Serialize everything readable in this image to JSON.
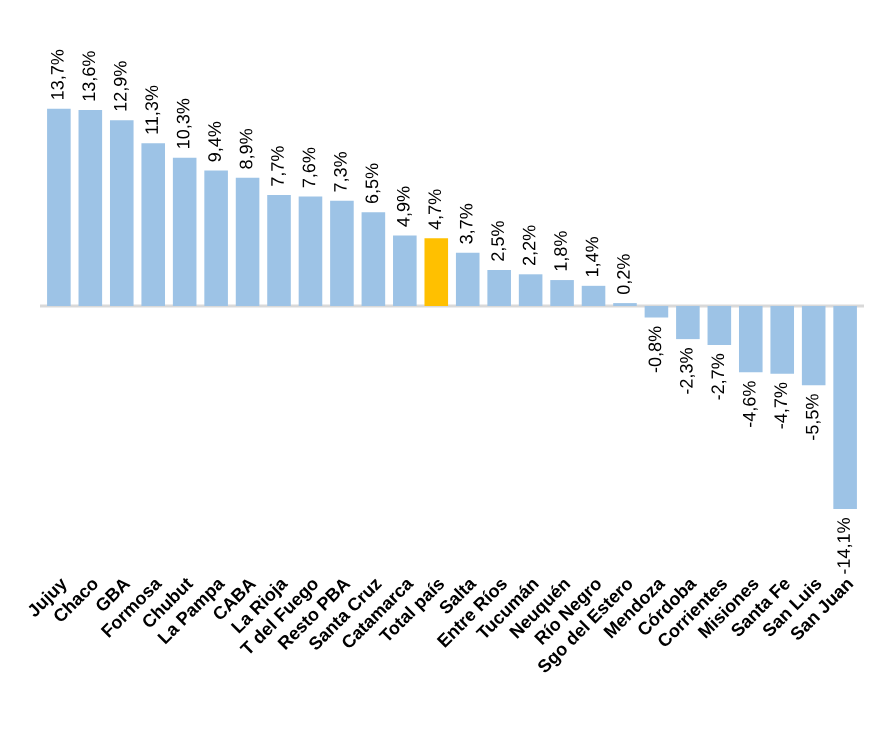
{
  "chart_data": {
    "type": "bar",
    "categories": [
      "Jujuy",
      "Chaco",
      "GBA",
      "Formosa",
      "Chubut",
      "La Pampa",
      "CABA",
      "La Rioja",
      "T del Fuego",
      "Resto PBA",
      "Santa Cruz",
      "Catamarca",
      "Total país",
      "Salta",
      "Entre Ríos",
      "Tucumán",
      "Neuquén",
      "Río Negro",
      "Sgo del Estero",
      "Mendoza",
      "Córdoba",
      "Corrientes",
      "Misiones",
      "Santa Fe",
      "San Luis",
      "San Juan"
    ],
    "values": [
      13.7,
      13.6,
      12.9,
      11.3,
      10.3,
      9.4,
      8.9,
      7.7,
      7.6,
      7.3,
      6.5,
      4.9,
      4.7,
      3.7,
      2.5,
      2.2,
      1.8,
      1.4,
      0.2,
      -0.8,
      -2.3,
      -2.7,
      -4.6,
      -4.7,
      -5.5,
      -14.1
    ],
    "value_labels": [
      "13,7%",
      "13,6%",
      "12,9%",
      "11,3%",
      "10,3%",
      "9,4%",
      "8,9%",
      "7,7%",
      "7,6%",
      "7,3%",
      "6,5%",
      "4,9%",
      "4,7%",
      "3,7%",
      "2,5%",
      "2,2%",
      "1,8%",
      "1,4%",
      "0,2%",
      "-0,8%",
      "-2,3%",
      "-2,7%",
      "-4,6%",
      "-4,7%",
      "-5,5%",
      "-14,1%"
    ],
    "colors": [
      "#9dc3e6",
      "#9dc3e6",
      "#9dc3e6",
      "#9dc3e6",
      "#9dc3e6",
      "#9dc3e6",
      "#9dc3e6",
      "#9dc3e6",
      "#9dc3e6",
      "#9dc3e6",
      "#9dc3e6",
      "#9dc3e6",
      "#ffc000",
      "#9dc3e6",
      "#9dc3e6",
      "#9dc3e6",
      "#9dc3e6",
      "#9dc3e6",
      "#9dc3e6",
      "#9dc3e6",
      "#9dc3e6",
      "#9dc3e6",
      "#9dc3e6",
      "#9dc3e6",
      "#9dc3e6",
      "#9dc3e6"
    ],
    "grid": false,
    "legend": false
  }
}
